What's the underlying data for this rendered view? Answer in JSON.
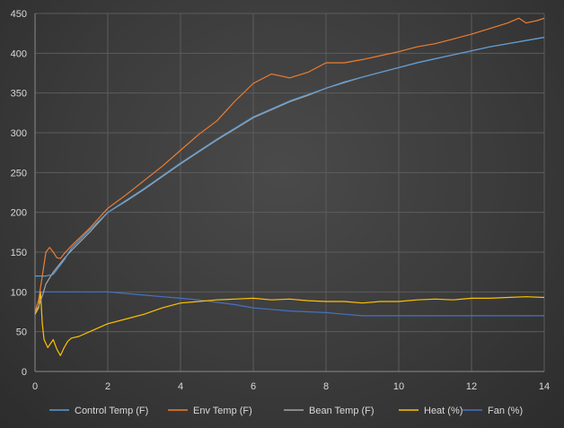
{
  "chart_data": {
    "type": "line",
    "title": "",
    "xlabel": "",
    "ylabel": "",
    "xlim": [
      0,
      14
    ],
    "ylim": [
      0,
      450
    ],
    "xticks": [
      0,
      2,
      4,
      6,
      8,
      10,
      12,
      14
    ],
    "yticks": [
      0,
      50,
      100,
      150,
      200,
      250,
      300,
      350,
      400,
      450
    ],
    "grid": true,
    "legend_position": "bottom",
    "series": [
      {
        "name": "Control Temp (F)",
        "color": "#5b9bd5",
        "points": [
          [
            0.0,
            120
          ],
          [
            0.3,
            120
          ],
          [
            0.5,
            122
          ],
          [
            0.8,
            140
          ],
          [
            1.0,
            155
          ],
          [
            1.5,
            178
          ],
          [
            2.0,
            200
          ],
          [
            2.5,
            215
          ],
          [
            3.0,
            230
          ],
          [
            3.5,
            246
          ],
          [
            4.0,
            262
          ],
          [
            4.5,
            277
          ],
          [
            5.0,
            292
          ],
          [
            5.5,
            306
          ],
          [
            6.0,
            320
          ],
          [
            6.5,
            330
          ],
          [
            7.0,
            340
          ],
          [
            7.5,
            348
          ],
          [
            8.0,
            356
          ],
          [
            8.5,
            364
          ],
          [
            9.0,
            370
          ],
          [
            9.5,
            376
          ],
          [
            10.0,
            382
          ],
          [
            10.5,
            388
          ],
          [
            11.0,
            393
          ],
          [
            11.5,
            398
          ],
          [
            12.0,
            403
          ],
          [
            12.5,
            408
          ],
          [
            13.0,
            412
          ],
          [
            13.5,
            416
          ],
          [
            14.0,
            420
          ]
        ]
      },
      {
        "name": "Env Temp (F)",
        "color": "#ed7d31",
        "points": [
          [
            0.0,
            75
          ],
          [
            0.1,
            90
          ],
          [
            0.2,
            120
          ],
          [
            0.3,
            150
          ],
          [
            0.4,
            156
          ],
          [
            0.5,
            150
          ],
          [
            0.6,
            143
          ],
          [
            0.7,
            142
          ],
          [
            0.8,
            148
          ],
          [
            1.0,
            158
          ],
          [
            1.5,
            180
          ],
          [
            2.0,
            205
          ],
          [
            2.5,
            222
          ],
          [
            3.0,
            240
          ],
          [
            3.5,
            258
          ],
          [
            4.0,
            278
          ],
          [
            4.5,
            298
          ],
          [
            5.0,
            315
          ],
          [
            5.5,
            340
          ],
          [
            6.0,
            362
          ],
          [
            6.5,
            374
          ],
          [
            7.0,
            369
          ],
          [
            7.5,
            376
          ],
          [
            8.0,
            388
          ],
          [
            8.5,
            388
          ],
          [
            9.0,
            392
          ],
          [
            9.5,
            397
          ],
          [
            10.0,
            402
          ],
          [
            10.5,
            408
          ],
          [
            11.0,
            412
          ],
          [
            11.5,
            418
          ],
          [
            12.0,
            424
          ],
          [
            12.5,
            431
          ],
          [
            13.0,
            438
          ],
          [
            13.3,
            444
          ],
          [
            13.5,
            438
          ],
          [
            13.8,
            441
          ],
          [
            14.0,
            444
          ]
        ]
      },
      {
        "name": "Bean Temp (F)",
        "color": "#a5a5a5",
        "points": [
          [
            0.0,
            75
          ],
          [
            0.1,
            82
          ],
          [
            0.2,
            95
          ],
          [
            0.3,
            110
          ],
          [
            0.5,
            125
          ],
          [
            0.8,
            142
          ],
          [
            1.0,
            152
          ],
          [
            1.5,
            175
          ],
          [
            2.0,
            200
          ],
          [
            2.5,
            214
          ],
          [
            3.0,
            229
          ],
          [
            3.5,
            245
          ],
          [
            4.0,
            261
          ],
          [
            4.5,
            276
          ],
          [
            5.0,
            291
          ],
          [
            5.5,
            305
          ],
          [
            6.0,
            319
          ],
          [
            6.5,
            329
          ],
          [
            7.0,
            339
          ],
          [
            7.5,
            347
          ],
          [
            8.0,
            356
          ],
          [
            8.5,
            363
          ],
          [
            9.0,
            370
          ],
          [
            9.5,
            376
          ],
          [
            10.0,
            382
          ],
          [
            10.5,
            388
          ],
          [
            11.0,
            393
          ],
          [
            11.5,
            398
          ],
          [
            12.0,
            403
          ],
          [
            12.5,
            408
          ],
          [
            13.0,
            412
          ],
          [
            13.5,
            416
          ],
          [
            14.0,
            420
          ]
        ]
      },
      {
        "name": "Heat (%)",
        "color": "#ffc000",
        "points": [
          [
            0.0,
            72
          ],
          [
            0.1,
            80
          ],
          [
            0.15,
            100
          ],
          [
            0.2,
            60
          ],
          [
            0.25,
            40
          ],
          [
            0.35,
            30
          ],
          [
            0.5,
            40
          ],
          [
            0.6,
            28
          ],
          [
            0.7,
            20
          ],
          [
            0.8,
            30
          ],
          [
            0.9,
            38
          ],
          [
            1.0,
            42
          ],
          [
            1.2,
            44
          ],
          [
            1.5,
            50
          ],
          [
            1.8,
            56
          ],
          [
            2.0,
            60
          ],
          [
            2.5,
            66
          ],
          [
            3.0,
            72
          ],
          [
            3.5,
            80
          ],
          [
            4.0,
            86
          ],
          [
            4.5,
            88
          ],
          [
            5.0,
            90
          ],
          [
            5.5,
            91
          ],
          [
            6.0,
            92
          ],
          [
            6.5,
            90
          ],
          [
            7.0,
            91
          ],
          [
            7.5,
            89
          ],
          [
            8.0,
            88
          ],
          [
            8.5,
            88
          ],
          [
            9.0,
            86
          ],
          [
            9.5,
            88
          ],
          [
            10.0,
            88
          ],
          [
            10.5,
            90
          ],
          [
            11.0,
            91
          ],
          [
            11.5,
            90
          ],
          [
            12.0,
            92
          ],
          [
            12.5,
            92
          ],
          [
            13.0,
            93
          ],
          [
            13.5,
            94
          ],
          [
            14.0,
            93
          ]
        ]
      },
      {
        "name": "Fan (%)",
        "color": "#4472c4",
        "points": [
          [
            0.0,
            100
          ],
          [
            2.0,
            100
          ],
          [
            2.5,
            98
          ],
          [
            3.0,
            96
          ],
          [
            3.5,
            94
          ],
          [
            4.0,
            92
          ],
          [
            4.5,
            90
          ],
          [
            5.0,
            87
          ],
          [
            5.5,
            84
          ],
          [
            6.0,
            80
          ],
          [
            6.5,
            78
          ],
          [
            7.0,
            76
          ],
          [
            7.5,
            75
          ],
          [
            8.0,
            74
          ],
          [
            8.5,
            72
          ],
          [
            9.0,
            70
          ],
          [
            9.5,
            70
          ],
          [
            10.0,
            70
          ],
          [
            11.0,
            70
          ],
          [
            12.0,
            70
          ],
          [
            13.0,
            70
          ],
          [
            14.0,
            70
          ]
        ]
      }
    ]
  }
}
